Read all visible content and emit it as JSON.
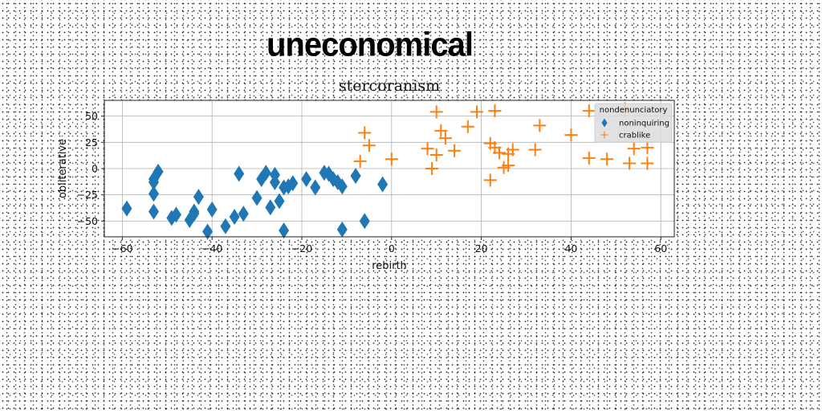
{
  "banner": "uneconomical",
  "chart_data": {
    "type": "scatter",
    "title": "stercoranism",
    "xlabel": "rebirth",
    "ylabel": "obliterative",
    "xlim": [
      -64,
      63
    ],
    "ylim": [
      -65,
      65
    ],
    "xticks": [
      -60,
      -40,
      -20,
      0,
      20,
      40,
      60
    ],
    "yticks": [
      -50,
      -25,
      0,
      25,
      50
    ],
    "grid": true,
    "legend": {
      "title": "nondenunciatory",
      "placement": "top-right"
    },
    "series": [
      {
        "name": "noninquiring",
        "marker": "diamond",
        "color": "#1f77b4",
        "x": [
          -59,
          -53,
          -53,
          -53,
          -53,
          -52,
          -49,
          -48,
          -45,
          -44,
          -44,
          -43,
          -41,
          -40,
          -37,
          -35,
          -34,
          -33,
          -30,
          -29,
          -28,
          -27,
          -26,
          -26,
          -25,
          -24,
          -24,
          -23,
          -22,
          -19,
          -17,
          -15,
          -14,
          -13,
          -12,
          -11,
          -11,
          -8,
          -6,
          -2
        ],
        "y": [
          -38,
          -41,
          -24,
          -13,
          -10,
          -3,
          -47,
          -44,
          -49,
          -43,
          -41,
          -27,
          -60,
          -39,
          -55,
          -46,
          -5,
          -43,
          -28,
          -10,
          -4,
          -37,
          -6,
          -13,
          -31,
          -18,
          -59,
          -17,
          -14,
          -10,
          -18,
          -4,
          -5,
          -10,
          -13,
          -17,
          -58,
          -7,
          -50,
          -15
        ]
      },
      {
        "name": "crablike",
        "marker": "plus",
        "color": "#ff7f0e",
        "x": [
          -7,
          -6,
          -5,
          0,
          8,
          9,
          10,
          10,
          11,
          12,
          14,
          17,
          19,
          22,
          22,
          23,
          23,
          24,
          25,
          26,
          26,
          27,
          32,
          33,
          40,
          44,
          44,
          48,
          52,
          53,
          54,
          57,
          57
        ],
        "y": [
          7,
          34,
          22,
          9,
          19,
          0,
          54,
          13,
          36,
          29,
          17,
          40,
          54,
          -11,
          24,
          55,
          20,
          15,
          1,
          3,
          14,
          18,
          18,
          41,
          32,
          55,
          10,
          9,
          57,
          5,
          19,
          20,
          5
        ]
      }
    ]
  }
}
